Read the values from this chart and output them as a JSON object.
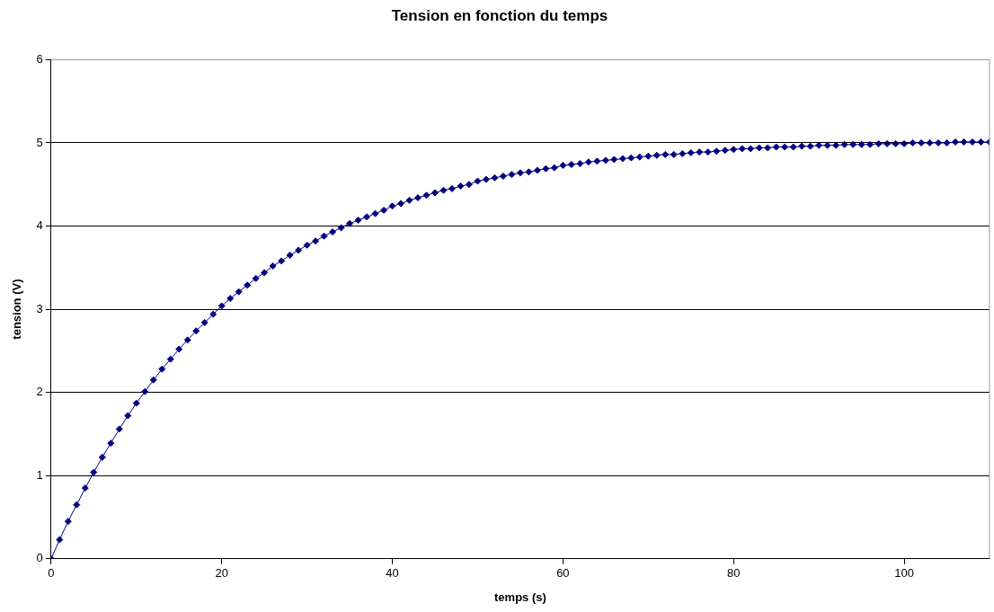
{
  "chart_data": {
    "type": "line",
    "title": "Tension en fonction du temps",
    "xlabel": "temps (s)",
    "ylabel": "tension (V)",
    "x": [
      0,
      1,
      2,
      3,
      4,
      5,
      6,
      7,
      8,
      9,
      10,
      11,
      12,
      13,
      14,
      15,
      16,
      17,
      18,
      19,
      20,
      21,
      22,
      23,
      24,
      25,
      26,
      27,
      28,
      29,
      30,
      31,
      32,
      33,
      34,
      35,
      36,
      37,
      38,
      39,
      40,
      41,
      42,
      43,
      44,
      45,
      46,
      47,
      48,
      49,
      50,
      51,
      52,
      53,
      54,
      55,
      56,
      57,
      58,
      59,
      60,
      61,
      62,
      63,
      64,
      65,
      66,
      67,
      68,
      69,
      70,
      71,
      72,
      73,
      74,
      75,
      76,
      77,
      78,
      79,
      80,
      81,
      82,
      83,
      84,
      85,
      86,
      87,
      88,
      89,
      90,
      91,
      92,
      93,
      94,
      95,
      96,
      97,
      98,
      99,
      100,
      101,
      102,
      103,
      104,
      105,
      106,
      107,
      108,
      109,
      110
    ],
    "series": [
      {
        "color": "#000080",
        "values": [
          0,
          0.23,
          0.45,
          0.65,
          0.85,
          1.04,
          1.22,
          1.39,
          1.56,
          1.72,
          1.87,
          2.01,
          2.15,
          2.28,
          2.4,
          2.52,
          2.63,
          2.74,
          2.84,
          2.94,
          3.04,
          3.13,
          3.21,
          3.29,
          3.37,
          3.44,
          3.52,
          3.58,
          3.65,
          3.71,
          3.77,
          3.82,
          3.88,
          3.93,
          3.98,
          4.03,
          4.07,
          4.11,
          4.15,
          4.19,
          4.24,
          4.27,
          4.31,
          4.34,
          4.37,
          4.4,
          4.43,
          4.45,
          4.48,
          4.5,
          4.54,
          4.56,
          4.58,
          4.6,
          4.62,
          4.64,
          4.65,
          4.67,
          4.69,
          4.7,
          4.73,
          4.74,
          4.75,
          4.77,
          4.78,
          4.79,
          4.8,
          4.81,
          4.82,
          4.83,
          4.84,
          4.85,
          4.86,
          4.86,
          4.87,
          4.88,
          4.89,
          4.89,
          4.9,
          4.91,
          4.92,
          4.93,
          4.93,
          4.94,
          4.94,
          4.95,
          4.95,
          4.95,
          4.96,
          4.96,
          4.97,
          4.97,
          4.97,
          4.98,
          4.98,
          4.98,
          4.98,
          4.99,
          4.99,
          4.99,
          4.99,
          5.0,
          5.0,
          5.0,
          5.0,
          5.0,
          5.01,
          5.01,
          5.01,
          5.01,
          5.01
        ]
      }
    ],
    "xlim": [
      0,
      110
    ],
    "xticks": [
      0,
      20,
      40,
      60,
      80,
      100
    ],
    "ylim": [
      0,
      6
    ],
    "yticks": [
      0,
      1,
      2,
      3,
      4,
      5,
      6
    ],
    "grid": "y",
    "legend": false,
    "marker": "diamond",
    "line_style": "solid"
  }
}
